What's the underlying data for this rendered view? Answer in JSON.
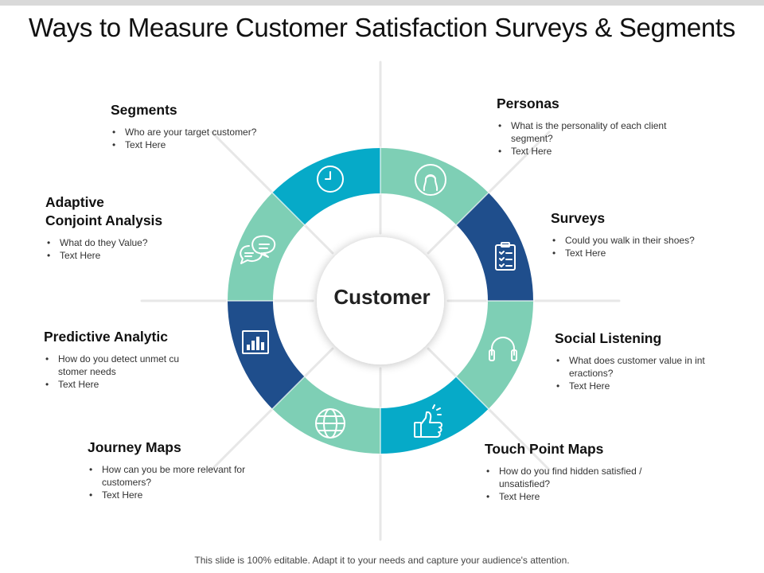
{
  "title": "Ways to Measure Customer Satisfaction Surveys & Segments",
  "center_label": "Customer",
  "colors": {
    "teal": "#06aac8",
    "mint": "#7ecfb5",
    "navy": "#1f4e8c"
  },
  "segments": [
    {
      "key": "personas",
      "heading": "Personas",
      "icon": "user-icon",
      "color": "mint",
      "bullets": [
        "What is the personality of each client segment?",
        "Text Here"
      ]
    },
    {
      "key": "surveys",
      "heading": "Surveys",
      "icon": "clipboard-checklist-icon",
      "color": "navy",
      "bullets": [
        "Could you walk in their shoes?",
        "Text Here"
      ]
    },
    {
      "key": "social-listening",
      "heading": "Social Listening",
      "icon": "headphones-icon",
      "color": "mint",
      "bullets": [
        "What does customer value  in int eractions?",
        "Text Here"
      ]
    },
    {
      "key": "touch-point-maps",
      "heading": "Touch Point Maps",
      "icon": "thumbs-up-icon",
      "color": "teal",
      "bullets": [
        "How do you find hidden satisfied / unsatisfied?",
        "Text Here"
      ]
    },
    {
      "key": "journey-maps",
      "heading": "Journey Maps",
      "icon": "globe-icon",
      "color": "mint",
      "bullets": [
        "How can you be more relevant for customers?",
        "Text Here"
      ]
    },
    {
      "key": "predictive-analytic",
      "heading": "Predictive Analytic",
      "icon": "bar-chart-icon",
      "color": "navy",
      "bullets": [
        "How do you detect unmet cu stomer needs",
        "Text Here"
      ]
    },
    {
      "key": "adaptive-conjoint",
      "heading": "Adaptive\nConjoint Analysis",
      "icon": "chat-bubbles-icon",
      "color": "mint",
      "bullets": [
        "What do they Value?",
        "Text Here"
      ]
    },
    {
      "key": "segments",
      "heading": "Segments",
      "icon": "clock-icon",
      "color": "teal",
      "bullets": [
        "Who are your target customer?",
        "Text Here"
      ]
    }
  ],
  "footer": "This slide is 100% editable. Adapt it to your needs and capture your audience's attention."
}
